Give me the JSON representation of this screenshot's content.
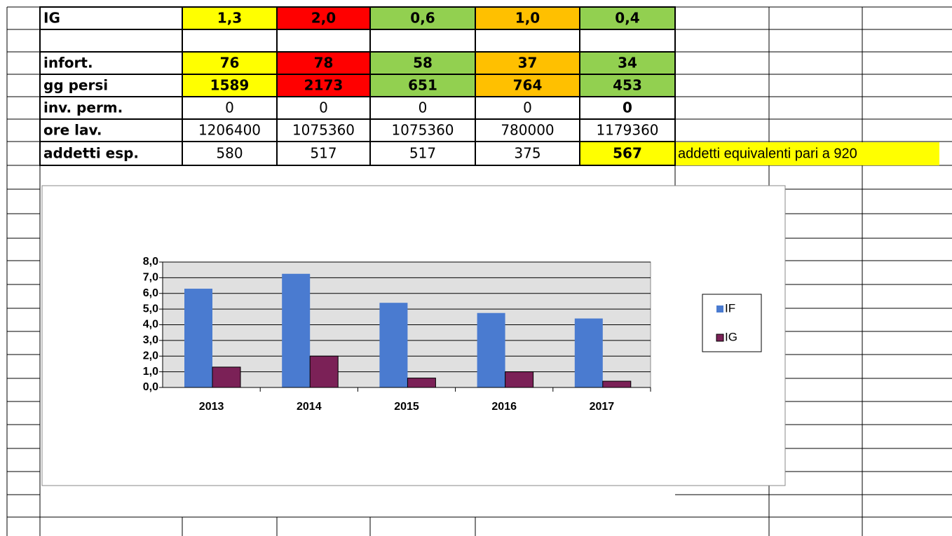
{
  "table": {
    "rows": [
      {
        "label": "IG",
        "cells": [
          "1,3",
          "2,0",
          "0,6",
          "1,0",
          "0,4"
        ]
      },
      {},
      {
        "label": "infort.",
        "cells": [
          "76",
          "78",
          "58",
          "37",
          "34"
        ]
      },
      {
        "label": "gg  persi",
        "cells": [
          "1589",
          "2173",
          "651",
          "764",
          "453"
        ]
      },
      {
        "label": "inv. perm.",
        "cells": [
          "0",
          "0",
          "0",
          "0",
          "0"
        ]
      },
      {
        "label": "ore lav.",
        "cells": [
          "1206400",
          "1075360",
          "1075360",
          "780000",
          "1179360"
        ]
      },
      {
        "label": "addetti esp.",
        "cells": [
          "580",
          "517",
          "517",
          "375",
          "567"
        ],
        "note": "addetti equivalenti pari a 920"
      }
    ]
  },
  "chart_data": {
    "type": "bar",
    "categories": [
      "2013",
      "2014",
      "2015",
      "2016",
      "2017"
    ],
    "series": [
      {
        "name": "IF",
        "color": "#4a7bd0",
        "values": [
          6.3,
          7.25,
          5.4,
          4.75,
          4.4
        ]
      },
      {
        "name": "IG",
        "color": "#7b2157",
        "values": [
          1.3,
          2.0,
          0.6,
          1.0,
          0.4
        ]
      }
    ],
    "ylim": [
      0,
      8
    ],
    "yticks": [
      {
        "value": 0,
        "label": "0,0"
      },
      {
        "value": 1,
        "label": "1,0"
      },
      {
        "value": 2,
        "label": "2,0"
      },
      {
        "value": 3,
        "label": "3,0"
      },
      {
        "value": 4,
        "label": "4,0"
      },
      {
        "value": 5,
        "label": "5,0"
      },
      {
        "value": 6,
        "label": "6,0"
      },
      {
        "value": 7,
        "label": "7,0"
      },
      {
        "value": 8,
        "label": "8,0"
      }
    ],
    "grid": true,
    "legend": "right"
  }
}
